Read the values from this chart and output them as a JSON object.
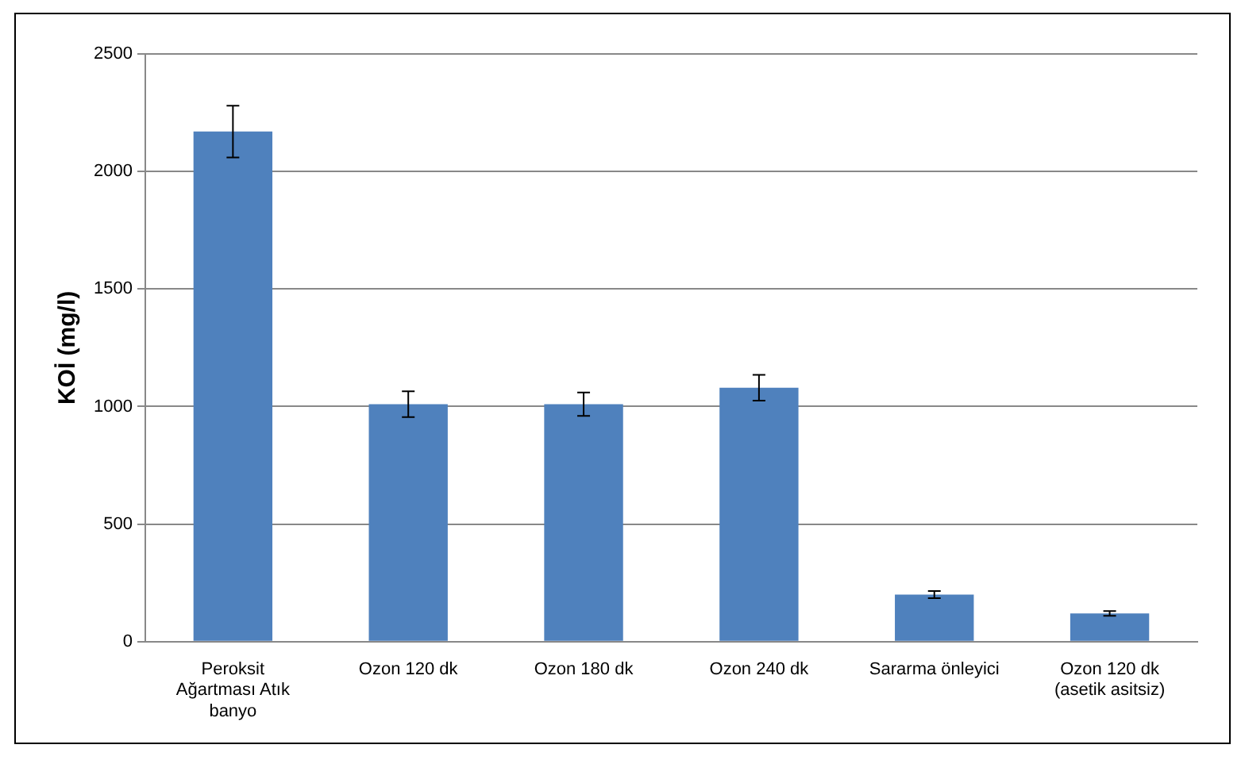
{
  "chart_data": {
    "type": "bar",
    "ylabel": "KOİ (mg/l)",
    "categories": [
      "Peroksit Ağartması Atık banyo",
      "Ozon 120 dk",
      "Ozon 180 dk",
      "Ozon 240 dk",
      "Sararma önleyici",
      "Ozon 120 dk (asetik asitsiz)"
    ],
    "values": [
      2170,
      1010,
      1010,
      1080,
      200,
      120
    ],
    "errors": [
      110,
      55,
      50,
      55,
      15,
      10
    ],
    "color": "#4f81bd",
    "ylim": [
      0,
      2500
    ],
    "yticks": [
      0,
      500,
      1000,
      1500,
      2000,
      2500
    ],
    "grid": "y",
    "legend": false
  }
}
